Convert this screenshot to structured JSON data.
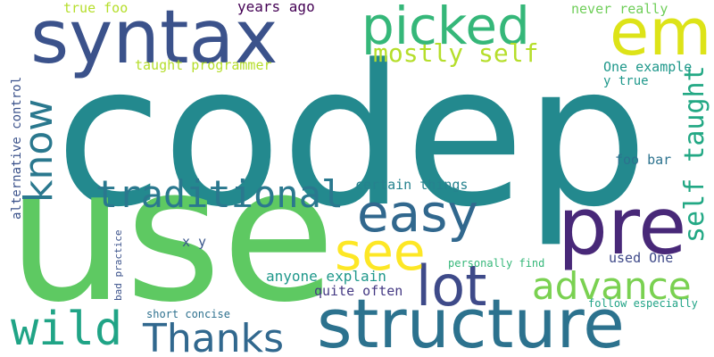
{
  "words": [
    {
      "id": "codep",
      "text": "codep",
      "color": "#23898e"
    },
    {
      "id": "use",
      "text": "use",
      "color": "#5ec962"
    },
    {
      "id": "syntax",
      "text": "syntax",
      "color": "#3b528b"
    },
    {
      "id": "structure",
      "text": "structure",
      "color": "#2c728e"
    },
    {
      "id": "picked",
      "text": "picked",
      "color": "#35b779"
    },
    {
      "id": "em",
      "text": "em",
      "color": "#dde318"
    },
    {
      "id": "pre",
      "text": "pre",
      "color": "#482878"
    },
    {
      "id": "traditional",
      "text": "traditional",
      "color": "#2a788e"
    },
    {
      "id": "easy",
      "text": "easy",
      "color": "#31688e"
    },
    {
      "id": "know",
      "text": "know",
      "color": "#2a788e"
    },
    {
      "id": "lot",
      "text": "lot",
      "color": "#3e4a89"
    },
    {
      "id": "see",
      "text": "see",
      "color": "#fde725"
    },
    {
      "id": "wild",
      "text": "wild",
      "color": "#20a486"
    },
    {
      "id": "thanks",
      "text": "Thanks",
      "color": "#31688e"
    },
    {
      "id": "advance",
      "text": "advance",
      "color": "#7ad151"
    },
    {
      "id": "self_taught",
      "text": "self taught",
      "color": "#22a884"
    },
    {
      "id": "mostly_self",
      "text": "mostly self",
      "color": "#b5de2b"
    },
    {
      "id": "true_foo",
      "text": "true foo",
      "color": "#b5de2b"
    },
    {
      "id": "years_ago",
      "text": "years ago",
      "color": "#440154"
    },
    {
      "id": "never_really",
      "text": "never really",
      "color": "#6ece58"
    },
    {
      "id": "taught_programmer",
      "text": "taught programmer",
      "color": "#b5de2b"
    },
    {
      "id": "one_example",
      "text": "One example",
      "color": "#1f988b"
    },
    {
      "id": "y_true",
      "text": "y true",
      "color": "#1f988b"
    },
    {
      "id": "alternative_control",
      "text": "alternative control",
      "color": "#3b528b"
    },
    {
      "id": "certain_things",
      "text": "certain things",
      "color": "#26828e"
    },
    {
      "id": "foo_bar",
      "text": "foo bar",
      "color": "#2c728e"
    },
    {
      "id": "x_y",
      "text": "x y",
      "color": "#39568c"
    },
    {
      "id": "used_one",
      "text": "used One",
      "color": "#3e4989"
    },
    {
      "id": "anyone_explain",
      "text": "anyone explain",
      "color": "#1f988b"
    },
    {
      "id": "personally_find",
      "text": "personally find",
      "color": "#35b779"
    },
    {
      "id": "quite_often",
      "text": "quite often",
      "color": "#443983"
    },
    {
      "id": "bad_practice",
      "text": "bad practice",
      "color": "#3b528b"
    },
    {
      "id": "short_concise",
      "text": "short concise",
      "color": "#2d708e"
    },
    {
      "id": "follow_especially",
      "text": "follow especially",
      "color": "#20a386"
    }
  ]
}
